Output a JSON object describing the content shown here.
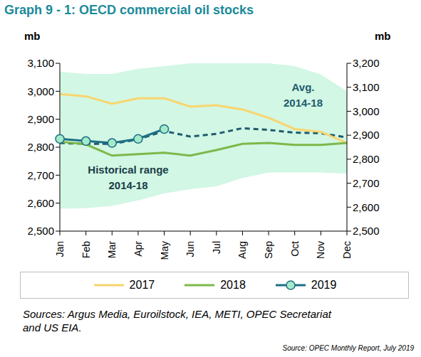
{
  "chart_data": {
    "type": "line",
    "title": "Graph 9 - 1: OECD commercial oil stocks",
    "y_label": "mb",
    "y2_label": "mb",
    "categories": [
      "Jan",
      "Feb",
      "Mar",
      "Apr",
      "May",
      "Jun",
      "Jul",
      "Aug",
      "Sep",
      "Oct",
      "Nov",
      "Dec"
    ],
    "series": [
      {
        "name": "2017",
        "color": "#F9D56E",
        "marker": "none",
        "line_style": "solid",
        "values": [
          2990,
          2982,
          2955,
          2975,
          2975,
          2945,
          2950,
          2935,
          2905,
          2865,
          2855,
          2815
        ]
      },
      {
        "name": "2018",
        "color": "#7DB84A",
        "marker": "none",
        "line_style": "solid",
        "values": [
          2820,
          2810,
          2770,
          2775,
          2780,
          2770,
          2790,
          2812,
          2815,
          2808,
          2808,
          2815
        ]
      },
      {
        "name": "2019",
        "color": "#1D6F86",
        "marker": "circle",
        "line_style": "solid",
        "values": [
          2830,
          2822,
          2815,
          2830,
          2865,
          null,
          null,
          null,
          null,
          null,
          null,
          null
        ]
      }
    ],
    "average": {
      "name": "Avg. 2014-18",
      "color": "#1F5A6E",
      "line_style": "dashed",
      "values": [
        2815,
        2812,
        2812,
        2828,
        2858,
        2838,
        2848,
        2868,
        2862,
        2852,
        2850,
        2835
      ]
    },
    "range": {
      "name": "Historical range 2014-18",
      "color": "#D2F7E4",
      "low": [
        2580,
        2582,
        2590,
        2610,
        2635,
        2650,
        2660,
        2690,
        2710,
        2710,
        2710,
        2705
      ],
      "high": [
        3070,
        3062,
        3062,
        3080,
        3090,
        3100,
        3100,
        3100,
        3100,
        3090,
        3060,
        3000
      ]
    },
    "ylim": [
      2500,
      3100
    ],
    "yticks": [
      {
        "value": 2500,
        "label": "2,500"
      },
      {
        "value": 2600,
        "label": "2,600"
      },
      {
        "value": 2700,
        "label": "2,700"
      },
      {
        "value": 2800,
        "label": "2,800"
      },
      {
        "value": 2900,
        "label": "2,900"
      },
      {
        "value": 3000,
        "label": "3,000"
      },
      {
        "value": 3100,
        "label": "3,100"
      }
    ],
    "y2lim": [
      2500,
      3200
    ],
    "y2ticks": [
      {
        "value": 2500,
        "label": "2,500"
      },
      {
        "value": 2600,
        "label": "2,600"
      },
      {
        "value": 2700,
        "label": "2,700"
      },
      {
        "value": 2800,
        "label": "2,800"
      },
      {
        "value": 2900,
        "label": "2,900"
      },
      {
        "value": 3000,
        "label": "3,000"
      },
      {
        "value": 3100,
        "label": "3,100"
      },
      {
        "value": 3200,
        "label": "3,200"
      }
    ],
    "grid": false,
    "legend": "bottom",
    "sources": "Sources: Argus Media, Euroilstock, IEA, METI, OPEC Secretariat and US EIA.",
    "source_note": "Source: OPEC Monthly Report, July 2019"
  }
}
